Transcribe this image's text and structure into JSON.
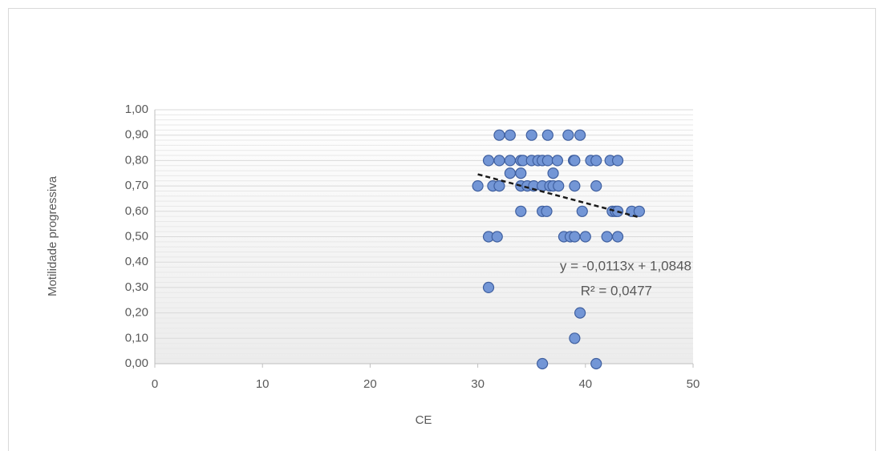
{
  "chart_data": {
    "type": "scatter",
    "x_label": "CE",
    "y_label": "Motilidade progressiva",
    "series": [
      {
        "color": "#7396d6",
        "x": [
          32,
          33,
          35,
          36.5,
          38.4,
          39.5,
          31,
          32,
          33,
          34,
          34.2,
          35,
          35.6,
          36,
          36.5,
          37.4,
          38.9,
          39,
          40.5,
          41,
          42.3,
          43,
          33,
          34,
          37,
          30,
          31.4,
          32,
          34,
          34.6,
          35.2,
          36,
          36.7,
          37,
          37.5,
          39,
          41,
          34,
          36,
          36.4,
          39.7,
          42.5,
          42.8,
          43,
          44.3,
          45,
          31,
          31.8,
          38,
          38.6,
          39,
          40,
          42,
          43,
          31,
          39.5,
          39,
          36,
          41
        ],
        "y": [
          0.9,
          0.9,
          0.9,
          0.9,
          0.9,
          0.9,
          0.8,
          0.8,
          0.8,
          0.8,
          0.8,
          0.8,
          0.8,
          0.8,
          0.8,
          0.8,
          0.8,
          0.8,
          0.8,
          0.8,
          0.8,
          0.8,
          0.75,
          0.75,
          0.75,
          0.7,
          0.7,
          0.7,
          0.7,
          0.7,
          0.7,
          0.7,
          0.7,
          0.7,
          0.7,
          0.7,
          0.7,
          0.6,
          0.6,
          0.6,
          0.6,
          0.6,
          0.6,
          0.6,
          0.6,
          0.6,
          0.5,
          0.5,
          0.5,
          0.5,
          0.5,
          0.5,
          0.5,
          0.5,
          0.3,
          0.2,
          0.1,
          0,
          0
        ]
      }
    ],
    "trendline": {
      "slope": -0.0113,
      "intercept": 1.0848,
      "equation": "y = -0,0113x + 1,0848",
      "r2": "R² = 0,0477"
    },
    "xlim": [
      0,
      50
    ],
    "xticks": [
      0,
      10,
      20,
      30,
      40,
      50
    ],
    "ylim": [
      0,
      1
    ],
    "yticks": [
      {
        "value": 0,
        "label": "0,00"
      },
      {
        "value": 0.1,
        "label": "0,10"
      },
      {
        "value": 0.2,
        "label": "0,20"
      },
      {
        "value": 0.3,
        "label": "0,30"
      },
      {
        "value": 0.4,
        "label": "0,40"
      },
      {
        "value": 0.5,
        "label": "0,50"
      },
      {
        "value": 0.6,
        "label": "0,60"
      },
      {
        "value": 0.7,
        "label": "0,70"
      },
      {
        "value": 0.8,
        "label": "0,80"
      },
      {
        "value": 0.9,
        "label": "0,90"
      },
      {
        "value": 1,
        "label": "1,00"
      }
    ],
    "grid": true
  }
}
